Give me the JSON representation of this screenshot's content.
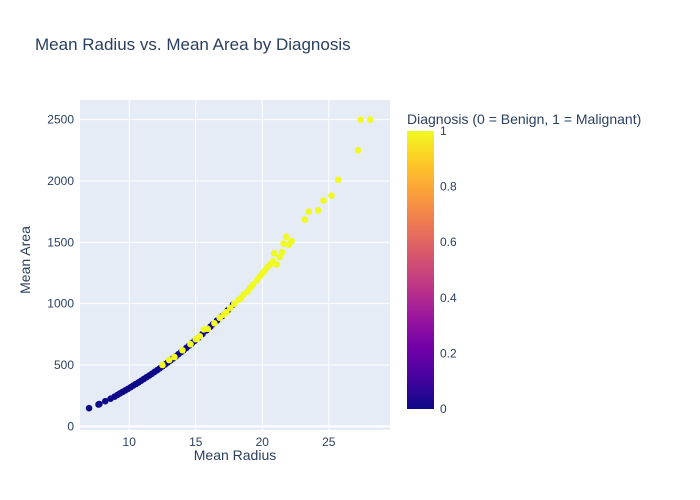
{
  "chart_data": {
    "type": "scatter",
    "title": "Mean Radius vs. Mean Area by Diagnosis",
    "xlabel": "Mean Radius",
    "ylabel": "Mean Area",
    "xlim": [
      6.3,
      29.6
    ],
    "ylim": [
      -30,
      2660
    ],
    "x_ticks": [
      10,
      15,
      20,
      25
    ],
    "y_ticks": [
      0,
      500,
      1000,
      1500,
      2000,
      2500
    ],
    "grid": true,
    "colorbar": {
      "title": "Diagnosis (0 = Benign, 1 = Malignant)",
      "range": [
        0,
        1
      ],
      "ticks": [
        0,
        0.2,
        0.4,
        0.6,
        0.8,
        1
      ],
      "colors": [
        "#0d0887",
        "#46039f",
        "#7201a8",
        "#9c179e",
        "#bd3786",
        "#d8576b",
        "#ed7953",
        "#fb9f3a",
        "#fdca26",
        "#f0f921"
      ]
    },
    "background_color": "#e5ecf6",
    "series": [
      {
        "points": [
          [
            6.98,
            148,
            0
          ],
          [
            7.69,
            178,
            0
          ],
          [
            7.76,
            182,
            0
          ],
          [
            8.2,
            205,
            0
          ],
          [
            8.6,
            225,
            0
          ],
          [
            8.9,
            242,
            0
          ],
          [
            9.1,
            255,
            0
          ],
          [
            9.3,
            268,
            0
          ],
          [
            9.5,
            280,
            0
          ],
          [
            9.7,
            293,
            0
          ],
          [
            9.9,
            305,
            0
          ],
          [
            10.1,
            318,
            0
          ],
          [
            10.3,
            332,
            0
          ],
          [
            10.5,
            345,
            0
          ],
          [
            10.7,
            358,
            0
          ],
          [
            10.9,
            372,
            0
          ],
          [
            11.1,
            386,
            0
          ],
          [
            11.3,
            400,
            0
          ],
          [
            11.5,
            414,
            0
          ],
          [
            11.7,
            428,
            0
          ],
          [
            11.9,
            443,
            0
          ],
          [
            12.1,
            458,
            0
          ],
          [
            12.3,
            473,
            0
          ],
          [
            12.5,
            489,
            0
          ],
          [
            12.7,
            505,
            0
          ],
          [
            12.9,
            521,
            0
          ],
          [
            13.1,
            537,
            0
          ],
          [
            13.3,
            554,
            0
          ],
          [
            13.5,
            570,
            0
          ],
          [
            13.7,
            588,
            0
          ],
          [
            13.9,
            605,
            0
          ],
          [
            14.1,
            622,
            0
          ],
          [
            14.3,
            640,
            0
          ],
          [
            14.5,
            658,
            0
          ],
          [
            14.7,
            676,
            0
          ],
          [
            14.9,
            695,
            0
          ],
          [
            15.2,
            722,
            0
          ],
          [
            15.5,
            752,
            0
          ],
          [
            15.8,
            782,
            0
          ],
          [
            16.1,
            812,
            0
          ],
          [
            16.3,
            833,
            0
          ],
          [
            16.6,
            862,
            0
          ],
          [
            17.0,
            900,
            0
          ],
          [
            17.4,
            945,
            0
          ],
          [
            17.8,
            993,
            0
          ],
          [
            12.5,
            500,
            1
          ],
          [
            13.0,
            540,
            1
          ],
          [
            13.4,
            565,
            1
          ],
          [
            14.0,
            620,
            1
          ],
          [
            14.6,
            670,
            1
          ],
          [
            15.0,
            710,
            1
          ],
          [
            15.1,
            715,
            1
          ],
          [
            15.3,
            735,
            1
          ],
          [
            15.6,
            790,
            1
          ],
          [
            15.9,
            795,
            1
          ],
          [
            16.4,
            840,
            1
          ],
          [
            16.8,
            885,
            1
          ],
          [
            17.1,
            910,
            1
          ],
          [
            17.3,
            930,
            1
          ],
          [
            17.6,
            965,
            1
          ],
          [
            17.9,
            1000,
            1
          ],
          [
            18.2,
            1030,
            1
          ],
          [
            18.4,
            1045,
            1
          ],
          [
            18.6,
            1075,
            1
          ],
          [
            18.9,
            1100,
            1
          ],
          [
            19.1,
            1130,
            1
          ],
          [
            19.3,
            1155,
            1
          ],
          [
            19.6,
            1190,
            1
          ],
          [
            19.8,
            1220,
            1
          ],
          [
            20.0,
            1245,
            1
          ],
          [
            20.2,
            1270,
            1
          ],
          [
            20.4,
            1300,
            1
          ],
          [
            20.6,
            1320,
            1
          ],
          [
            20.8,
            1345,
            1
          ],
          [
            20.9,
            1410,
            1
          ],
          [
            21.1,
            1320,
            1
          ],
          [
            21.3,
            1380,
            1
          ],
          [
            21.5,
            1420,
            1
          ],
          [
            21.6,
            1490,
            1
          ],
          [
            21.8,
            1545,
            1
          ],
          [
            22.0,
            1480,
            1
          ],
          [
            22.2,
            1510,
            1
          ],
          [
            23.2,
            1685,
            1
          ],
          [
            23.5,
            1750,
            1
          ],
          [
            24.2,
            1760,
            1
          ],
          [
            24.6,
            1840,
            1
          ],
          [
            25.2,
            1880,
            1
          ],
          [
            25.7,
            2010,
            1
          ],
          [
            27.2,
            2250,
            1
          ],
          [
            27.4,
            2500,
            1
          ],
          [
            28.1,
            2500,
            1
          ]
        ]
      }
    ]
  }
}
